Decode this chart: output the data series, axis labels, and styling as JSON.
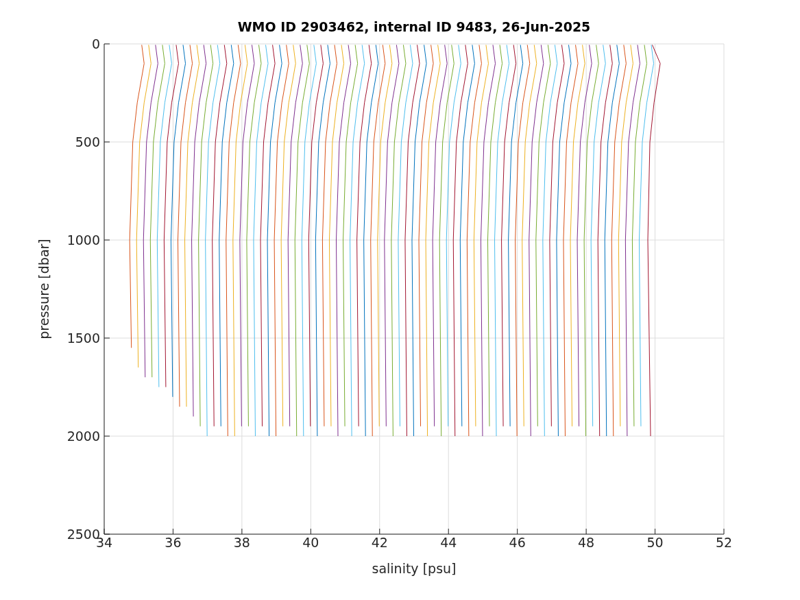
{
  "chart_data": {
    "type": "line",
    "title": "WMO ID 2903462, internal ID 9483, 26-Jun-2025",
    "xlabel": "salinity [psu]",
    "ylabel": "pressure [dbar]",
    "xlim": [
      34,
      52
    ],
    "xticks": [
      34,
      36,
      38,
      40,
      42,
      44,
      46,
      48,
      50,
      52
    ],
    "ylim": [
      2500,
      0
    ],
    "yticks": [
      0,
      500,
      1000,
      1500,
      2000,
      2500
    ],
    "grid": true,
    "series": [
      {
        "color": "#d95319",
        "x": [
          35.09,
          35.16,
          34.96,
          34.83,
          34.74,
          34.79
        ],
        "values": [
          5,
          100,
          300,
          500,
          1000,
          1550
        ]
      },
      {
        "color": "#edb120",
        "x": [
          35.29,
          35.36,
          35.16,
          35.03,
          34.94,
          34.99
        ],
        "values": [
          5,
          100,
          300,
          500,
          1000,
          1650
        ]
      },
      {
        "color": "#7e2f8e",
        "x": [
          35.49,
          35.56,
          35.36,
          35.23,
          35.14,
          35.19
        ],
        "values": [
          5,
          100,
          300,
          500,
          1000,
          1700
        ]
      },
      {
        "color": "#77ac30",
        "x": [
          35.69,
          35.76,
          35.56,
          35.43,
          35.34,
          35.39
        ],
        "values": [
          5,
          100,
          300,
          500,
          1000,
          1700
        ]
      },
      {
        "color": "#4dbeee",
        "x": [
          35.89,
          35.96,
          35.76,
          35.63,
          35.54,
          35.59
        ],
        "values": [
          5,
          100,
          300,
          500,
          1000,
          1750
        ]
      },
      {
        "color": "#a2142f",
        "x": [
          36.09,
          36.16,
          35.96,
          35.83,
          35.74,
          35.79
        ],
        "values": [
          5,
          100,
          300,
          500,
          1000,
          1750
        ]
      },
      {
        "color": "#0072bd",
        "x": [
          36.29,
          36.36,
          36.16,
          36.03,
          35.94,
          35.99
        ],
        "values": [
          5,
          100,
          300,
          500,
          1000,
          1800
        ]
      },
      {
        "color": "#d95319",
        "x": [
          36.49,
          36.56,
          36.36,
          36.23,
          36.14,
          36.19
        ],
        "values": [
          5,
          100,
          300,
          500,
          1000,
          1850
        ]
      },
      {
        "color": "#edb120",
        "x": [
          36.69,
          36.76,
          36.56,
          36.43,
          36.34,
          36.39
        ],
        "values": [
          5,
          100,
          300,
          500,
          1000,
          1850
        ]
      },
      {
        "color": "#7e2f8e",
        "x": [
          36.89,
          36.96,
          36.76,
          36.63,
          36.54,
          36.59
        ],
        "values": [
          5,
          100,
          300,
          500,
          1000,
          1900
        ]
      },
      {
        "color": "#77ac30",
        "x": [
          37.09,
          37.16,
          36.96,
          36.83,
          36.74,
          36.79
        ],
        "values": [
          5,
          100,
          300,
          500,
          1000,
          1950
        ]
      },
      {
        "color": "#4dbeee",
        "x": [
          37.29,
          37.36,
          37.16,
          37.03,
          36.94,
          36.99
        ],
        "values": [
          5,
          100,
          300,
          500,
          1000,
          2000
        ]
      },
      {
        "color": "#a2142f",
        "x": [
          37.49,
          37.56,
          37.36,
          37.23,
          37.14,
          37.19
        ],
        "values": [
          5,
          100,
          300,
          500,
          1000,
          1950
        ]
      },
      {
        "color": "#0072bd",
        "x": [
          37.69,
          37.76,
          37.56,
          37.43,
          37.34,
          37.39
        ],
        "values": [
          5,
          100,
          300,
          500,
          1000,
          1950
        ]
      },
      {
        "color": "#d95319",
        "x": [
          37.89,
          37.96,
          37.76,
          37.63,
          37.54,
          37.59
        ],
        "values": [
          5,
          100,
          300,
          500,
          1000,
          2000
        ]
      },
      {
        "color": "#edb120",
        "x": [
          38.09,
          38.16,
          37.96,
          37.83,
          37.74,
          37.79
        ],
        "values": [
          5,
          100,
          300,
          500,
          1000,
          2000
        ]
      },
      {
        "color": "#7e2f8e",
        "x": [
          38.29,
          38.36,
          38.16,
          38.03,
          37.94,
          37.99
        ],
        "values": [
          5,
          100,
          300,
          500,
          1000,
          1950
        ]
      },
      {
        "color": "#77ac30",
        "x": [
          38.49,
          38.56,
          38.36,
          38.23,
          38.14,
          38.19
        ],
        "values": [
          5,
          100,
          300,
          500,
          1000,
          1950
        ]
      },
      {
        "color": "#4dbeee",
        "x": [
          38.69,
          38.76,
          38.56,
          38.43,
          38.34,
          38.39
        ],
        "values": [
          5,
          100,
          300,
          500,
          1000,
          2000
        ]
      },
      {
        "color": "#a2142f",
        "x": [
          38.89,
          38.96,
          38.76,
          38.63,
          38.54,
          38.59
        ],
        "values": [
          5,
          100,
          300,
          500,
          1000,
          1950
        ]
      },
      {
        "color": "#0072bd",
        "x": [
          39.09,
          39.16,
          38.96,
          38.83,
          38.74,
          38.79
        ],
        "values": [
          5,
          100,
          300,
          500,
          1000,
          2000
        ]
      },
      {
        "color": "#d95319",
        "x": [
          39.29,
          39.36,
          39.16,
          39.03,
          38.94,
          38.99
        ],
        "values": [
          5,
          100,
          300,
          500,
          1000,
          2000
        ]
      },
      {
        "color": "#edb120",
        "x": [
          39.49,
          39.56,
          39.36,
          39.23,
          39.14,
          39.19
        ],
        "values": [
          5,
          100,
          300,
          500,
          1000,
          1950
        ]
      },
      {
        "color": "#7e2f8e",
        "x": [
          39.69,
          39.76,
          39.56,
          39.43,
          39.34,
          39.39
        ],
        "values": [
          5,
          100,
          300,
          500,
          1000,
          1950
        ]
      },
      {
        "color": "#77ac30",
        "x": [
          39.89,
          39.96,
          39.76,
          39.63,
          39.54,
          39.59
        ],
        "values": [
          5,
          100,
          300,
          500,
          1000,
          2000
        ]
      },
      {
        "color": "#4dbeee",
        "x": [
          40.09,
          40.16,
          39.96,
          39.83,
          39.74,
          39.79
        ],
        "values": [
          5,
          100,
          300,
          500,
          1000,
          2000
        ]
      },
      {
        "color": "#a2142f",
        "x": [
          40.29,
          40.36,
          40.16,
          40.03,
          39.94,
          39.99
        ],
        "values": [
          5,
          100,
          300,
          500,
          1000,
          1950
        ]
      },
      {
        "color": "#0072bd",
        "x": [
          40.49,
          40.56,
          40.36,
          40.23,
          40.14,
          40.19
        ],
        "values": [
          5,
          100,
          300,
          500,
          1000,
          2000
        ]
      },
      {
        "color": "#d95319",
        "x": [
          40.69,
          40.76,
          40.56,
          40.43,
          40.34,
          40.39
        ],
        "values": [
          5,
          100,
          300,
          500,
          1000,
          1950
        ]
      },
      {
        "color": "#edb120",
        "x": [
          40.89,
          40.96,
          40.76,
          40.63,
          40.54,
          40.59
        ],
        "values": [
          5,
          100,
          300,
          500,
          1000,
          1950
        ]
      },
      {
        "color": "#7e2f8e",
        "x": [
          41.09,
          41.16,
          40.96,
          40.83,
          40.74,
          40.79
        ],
        "values": [
          5,
          100,
          300,
          500,
          1000,
          2000
        ]
      },
      {
        "color": "#77ac30",
        "x": [
          41.29,
          41.36,
          41.16,
          41.03,
          40.94,
          40.99
        ],
        "values": [
          5,
          100,
          300,
          500,
          1000,
          1950
        ]
      },
      {
        "color": "#4dbeee",
        "x": [
          41.49,
          41.56,
          41.36,
          41.23,
          41.14,
          41.19
        ],
        "values": [
          5,
          100,
          300,
          500,
          1000,
          2000
        ]
      },
      {
        "color": "#a2142f",
        "x": [
          41.69,
          41.76,
          41.56,
          41.43,
          41.34,
          41.39
        ],
        "values": [
          5,
          100,
          300,
          500,
          1000,
          1950
        ]
      },
      {
        "color": "#0072bd",
        "x": [
          41.89,
          41.96,
          41.76,
          41.63,
          41.54,
          41.59
        ],
        "values": [
          5,
          100,
          300,
          500,
          1000,
          2000
        ]
      },
      {
        "color": "#d95319",
        "x": [
          42.09,
          42.16,
          41.96,
          41.83,
          41.74,
          41.79
        ],
        "values": [
          5,
          100,
          300,
          500,
          1000,
          2000
        ]
      },
      {
        "color": "#edb120",
        "x": [
          42.29,
          42.36,
          42.16,
          42.03,
          41.94,
          41.99
        ],
        "values": [
          5,
          100,
          300,
          500,
          1000,
          1950
        ]
      },
      {
        "color": "#7e2f8e",
        "x": [
          42.49,
          42.56,
          42.36,
          42.23,
          42.14,
          42.19
        ],
        "values": [
          5,
          100,
          300,
          500,
          1000,
          1950
        ]
      },
      {
        "color": "#77ac30",
        "x": [
          42.69,
          42.76,
          42.56,
          42.43,
          42.34,
          42.39
        ],
        "values": [
          5,
          100,
          300,
          500,
          1000,
          2000
        ]
      },
      {
        "color": "#4dbeee",
        "x": [
          42.89,
          42.96,
          42.76,
          42.63,
          42.54,
          42.59
        ],
        "values": [
          5,
          100,
          300,
          500,
          1000,
          1950
        ]
      },
      {
        "color": "#a2142f",
        "x": [
          43.09,
          43.16,
          42.96,
          42.83,
          42.74,
          42.79
        ],
        "values": [
          5,
          100,
          300,
          500,
          1000,
          2000
        ]
      },
      {
        "color": "#0072bd",
        "x": [
          43.29,
          43.36,
          43.16,
          43.03,
          42.94,
          42.99
        ],
        "values": [
          5,
          100,
          300,
          500,
          1000,
          2000
        ]
      },
      {
        "color": "#d95319",
        "x": [
          43.49,
          43.56,
          43.36,
          43.23,
          43.14,
          43.19
        ],
        "values": [
          5,
          100,
          300,
          500,
          1000,
          1950
        ]
      },
      {
        "color": "#edb120",
        "x": [
          43.69,
          43.76,
          43.56,
          43.43,
          43.34,
          43.39
        ],
        "values": [
          5,
          100,
          300,
          500,
          1000,
          2000
        ]
      },
      {
        "color": "#7e2f8e",
        "x": [
          43.89,
          43.96,
          43.76,
          43.63,
          43.54,
          43.59
        ],
        "values": [
          5,
          100,
          300,
          500,
          1000,
          1950
        ]
      },
      {
        "color": "#77ac30",
        "x": [
          44.09,
          44.16,
          43.96,
          43.83,
          43.74,
          43.79
        ],
        "values": [
          5,
          100,
          300,
          500,
          1000,
          2000
        ]
      },
      {
        "color": "#4dbeee",
        "x": [
          44.29,
          44.36,
          44.16,
          44.03,
          43.94,
          43.99
        ],
        "values": [
          5,
          100,
          300,
          500,
          1000,
          1950
        ]
      },
      {
        "color": "#a2142f",
        "x": [
          44.49,
          44.56,
          44.36,
          44.23,
          44.14,
          44.19
        ],
        "values": [
          5,
          100,
          300,
          500,
          1000,
          2000
        ]
      },
      {
        "color": "#0072bd",
        "x": [
          44.69,
          44.76,
          44.56,
          44.43,
          44.34,
          44.39
        ],
        "values": [
          5,
          100,
          300,
          500,
          1000,
          1950
        ]
      },
      {
        "color": "#d95319",
        "x": [
          44.89,
          44.96,
          44.76,
          44.63,
          44.54,
          44.59
        ],
        "values": [
          5,
          100,
          300,
          500,
          1000,
          2000
        ]
      },
      {
        "color": "#edb120",
        "x": [
          45.09,
          45.16,
          44.96,
          44.83,
          44.74,
          44.79
        ],
        "values": [
          5,
          100,
          300,
          500,
          1000,
          1950
        ]
      },
      {
        "color": "#7e2f8e",
        "x": [
          45.29,
          45.36,
          45.16,
          45.03,
          44.94,
          44.99
        ],
        "values": [
          5,
          100,
          300,
          500,
          1000,
          2000
        ]
      },
      {
        "color": "#77ac30",
        "x": [
          45.49,
          45.56,
          45.36,
          45.23,
          45.14,
          45.19
        ],
        "values": [
          5,
          100,
          300,
          500,
          1000,
          1950
        ]
      },
      {
        "color": "#4dbeee",
        "x": [
          45.69,
          45.76,
          45.56,
          45.43,
          45.34,
          45.39
        ],
        "values": [
          5,
          100,
          300,
          500,
          1000,
          2000
        ]
      },
      {
        "color": "#a2142f",
        "x": [
          45.89,
          45.96,
          45.76,
          45.63,
          45.54,
          45.59
        ],
        "values": [
          5,
          100,
          300,
          500,
          1000,
          1950
        ]
      },
      {
        "color": "#0072bd",
        "x": [
          46.09,
          46.16,
          45.96,
          45.83,
          45.74,
          45.79
        ],
        "values": [
          5,
          100,
          300,
          500,
          1000,
          1950
        ]
      },
      {
        "color": "#d95319",
        "x": [
          46.29,
          46.36,
          46.16,
          46.03,
          45.94,
          45.99
        ],
        "values": [
          5,
          100,
          300,
          500,
          1000,
          2000
        ]
      },
      {
        "color": "#edb120",
        "x": [
          46.49,
          46.56,
          46.36,
          46.23,
          46.14,
          46.19
        ],
        "values": [
          5,
          100,
          300,
          500,
          1000,
          1950
        ]
      },
      {
        "color": "#7e2f8e",
        "x": [
          46.69,
          46.76,
          46.56,
          46.43,
          46.34,
          46.39
        ],
        "values": [
          5,
          100,
          300,
          500,
          1000,
          2000
        ]
      },
      {
        "color": "#77ac30",
        "x": [
          46.89,
          46.96,
          46.76,
          46.63,
          46.54,
          46.59
        ],
        "values": [
          5,
          100,
          300,
          500,
          1000,
          1950
        ]
      },
      {
        "color": "#4dbeee",
        "x": [
          47.09,
          47.16,
          46.96,
          46.83,
          46.74,
          46.79
        ],
        "values": [
          5,
          100,
          300,
          500,
          1000,
          2000
        ]
      },
      {
        "color": "#a2142f",
        "x": [
          47.29,
          47.36,
          47.16,
          47.03,
          46.94,
          46.99
        ],
        "values": [
          5,
          100,
          300,
          500,
          1000,
          1950
        ]
      },
      {
        "color": "#0072bd",
        "x": [
          47.49,
          47.56,
          47.36,
          47.23,
          47.14,
          47.19
        ],
        "values": [
          5,
          100,
          300,
          500,
          1000,
          2000
        ]
      },
      {
        "color": "#d95319",
        "x": [
          47.69,
          47.76,
          47.56,
          47.43,
          47.34,
          47.39
        ],
        "values": [
          5,
          100,
          300,
          500,
          1000,
          2000
        ]
      },
      {
        "color": "#edb120",
        "x": [
          47.89,
          47.96,
          47.76,
          47.63,
          47.54,
          47.59
        ],
        "values": [
          5,
          100,
          300,
          500,
          1000,
          1950
        ]
      },
      {
        "color": "#7e2f8e",
        "x": [
          48.09,
          48.16,
          47.96,
          47.83,
          47.74,
          47.79
        ],
        "values": [
          5,
          100,
          300,
          500,
          1000,
          1950
        ]
      },
      {
        "color": "#77ac30",
        "x": [
          48.29,
          48.36,
          48.16,
          48.03,
          47.94,
          47.99
        ],
        "values": [
          5,
          100,
          300,
          500,
          1000,
          2000
        ]
      },
      {
        "color": "#4dbeee",
        "x": [
          48.49,
          48.56,
          48.36,
          48.23,
          48.14,
          48.19
        ],
        "values": [
          5,
          100,
          300,
          500,
          1000,
          1950
        ]
      },
      {
        "color": "#a2142f",
        "x": [
          48.69,
          48.76,
          48.56,
          48.43,
          48.34,
          48.39
        ],
        "values": [
          5,
          100,
          300,
          500,
          1000,
          2000
        ]
      },
      {
        "color": "#0072bd",
        "x": [
          48.89,
          48.96,
          48.76,
          48.63,
          48.54,
          48.59
        ],
        "values": [
          5,
          100,
          300,
          500,
          1000,
          2000
        ]
      },
      {
        "color": "#d95319",
        "x": [
          49.09,
          49.16,
          48.96,
          48.83,
          48.74,
          48.79
        ],
        "values": [
          5,
          100,
          300,
          500,
          1000,
          2000
        ]
      },
      {
        "color": "#edb120",
        "x": [
          49.29,
          49.36,
          49.16,
          49.03,
          48.94,
          48.99
        ],
        "values": [
          5,
          100,
          300,
          500,
          1000,
          1950
        ]
      },
      {
        "color": "#7e2f8e",
        "x": [
          49.49,
          49.56,
          49.36,
          49.23,
          49.14,
          49.19
        ],
        "values": [
          5,
          100,
          300,
          500,
          1000,
          2000
        ]
      },
      {
        "color": "#77ac30",
        "x": [
          49.69,
          49.76,
          49.56,
          49.43,
          49.34,
          49.39
        ],
        "values": [
          5,
          100,
          300,
          500,
          1000,
          1950
        ]
      },
      {
        "color": "#4dbeee",
        "x": [
          49.89,
          49.96,
          49.76,
          49.63,
          49.54,
          49.59
        ],
        "values": [
          5,
          100,
          300,
          500,
          1000,
          1950
        ]
      },
      {
        "color": "#a2142f",
        "x": [
          49.92,
          50.15,
          49.97,
          49.85,
          49.79,
          49.87
        ],
        "values": [
          5,
          100,
          300,
          500,
          1000,
          2000
        ]
      }
    ]
  }
}
